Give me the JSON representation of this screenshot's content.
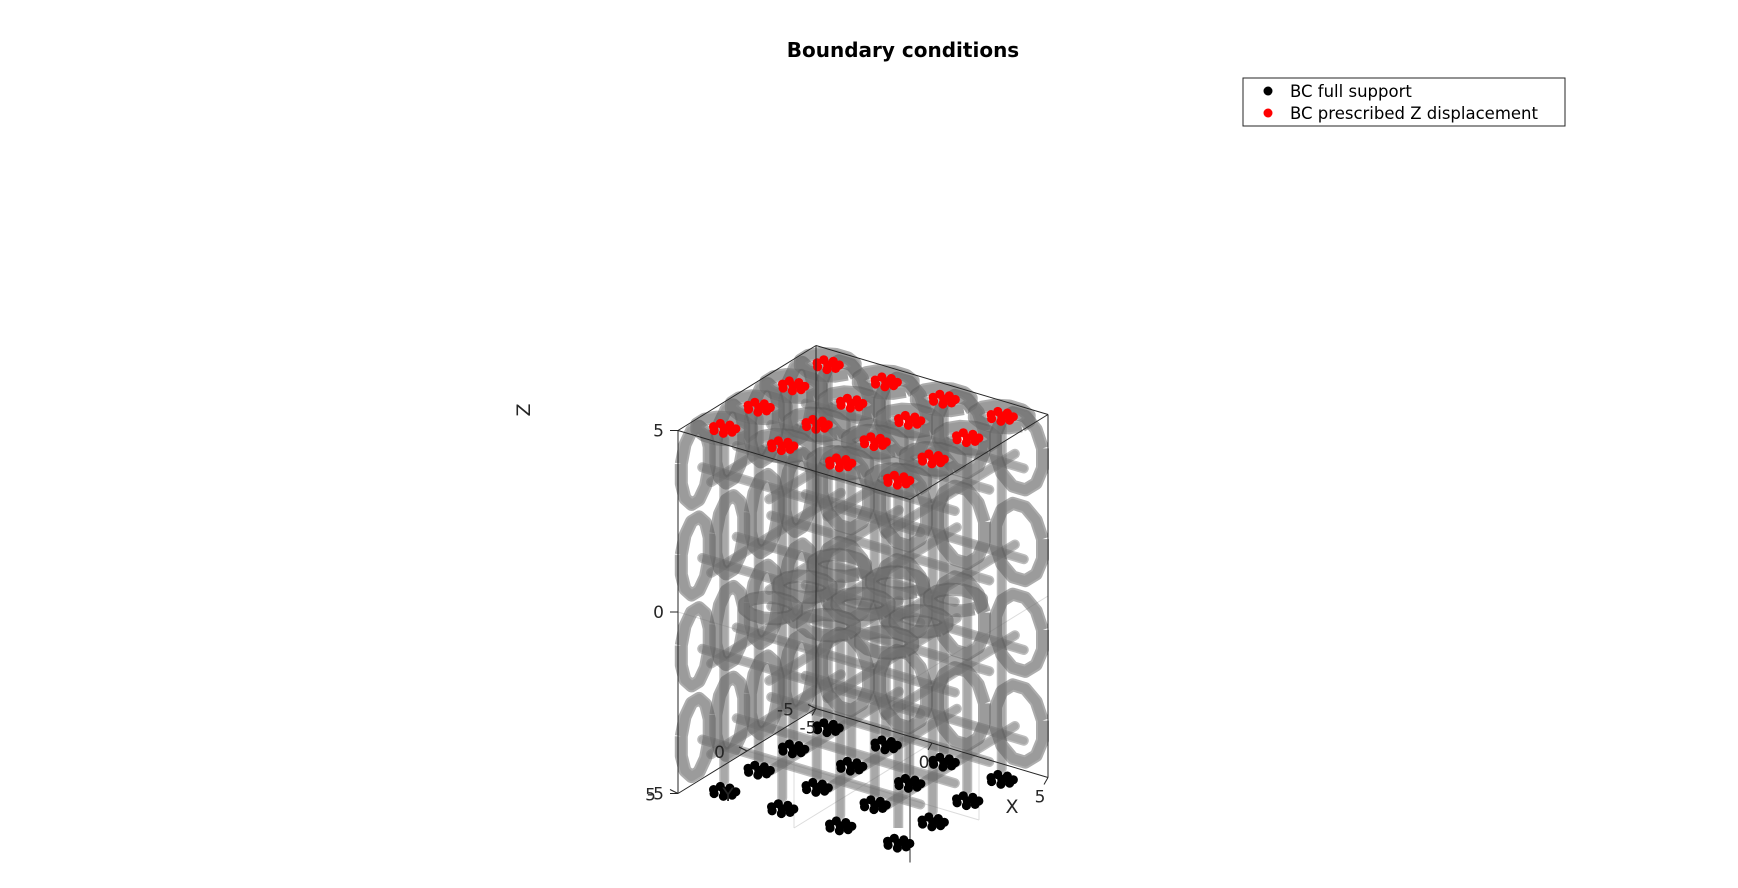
{
  "chart_data": {
    "type": "scatter",
    "projection": "3d",
    "title": "Boundary conditions",
    "xlabel": "X",
    "ylabel": "Y",
    "zlabel": "Z",
    "xlim": [
      -5,
      5
    ],
    "ylim": [
      -5,
      5
    ],
    "zlim": [
      -5,
      5
    ],
    "xticks": [
      "-5",
      "0",
      "5"
    ],
    "yticks": [
      "-5",
      "0",
      "5"
    ],
    "zticks": [
      "-5",
      "0",
      "5"
    ],
    "grid": true,
    "legend_position": "top-right",
    "surface": {
      "color": "#7f7f7f",
      "opacity": 0.5
    },
    "series": [
      {
        "name": "BC full support",
        "color": "#000000",
        "z": -5,
        "xy": [
          [
            -3.75,
            -3.75
          ],
          [
            -3.75,
            -1.25
          ],
          [
            -3.75,
            1.25
          ],
          [
            -3.75,
            3.75
          ],
          [
            -1.25,
            -3.75
          ],
          [
            -1.25,
            -1.25
          ],
          [
            -1.25,
            1.25
          ],
          [
            -1.25,
            3.75
          ],
          [
            1.25,
            -3.75
          ],
          [
            1.25,
            -1.25
          ],
          [
            1.25,
            1.25
          ],
          [
            1.25,
            3.75
          ],
          [
            3.75,
            -3.75
          ],
          [
            3.75,
            -1.25
          ],
          [
            3.75,
            1.25
          ],
          [
            3.75,
            3.75
          ]
        ]
      },
      {
        "name": "BC prescribed Z displacement",
        "color": "#ff0000",
        "z": 5,
        "xy": [
          [
            -3.75,
            -3.75
          ],
          [
            -3.75,
            -1.25
          ],
          [
            -3.75,
            1.25
          ],
          [
            -3.75,
            3.75
          ],
          [
            -1.25,
            -3.75
          ],
          [
            -1.25,
            -1.25
          ],
          [
            -1.25,
            1.25
          ],
          [
            -1.25,
            3.75
          ],
          [
            1.25,
            -3.75
          ],
          [
            1.25,
            -1.25
          ],
          [
            1.25,
            1.25
          ],
          [
            1.25,
            3.75
          ],
          [
            3.75,
            -3.75
          ],
          [
            3.75,
            -1.25
          ],
          [
            3.75,
            1.25
          ],
          [
            3.75,
            3.75
          ]
        ]
      }
    ]
  }
}
